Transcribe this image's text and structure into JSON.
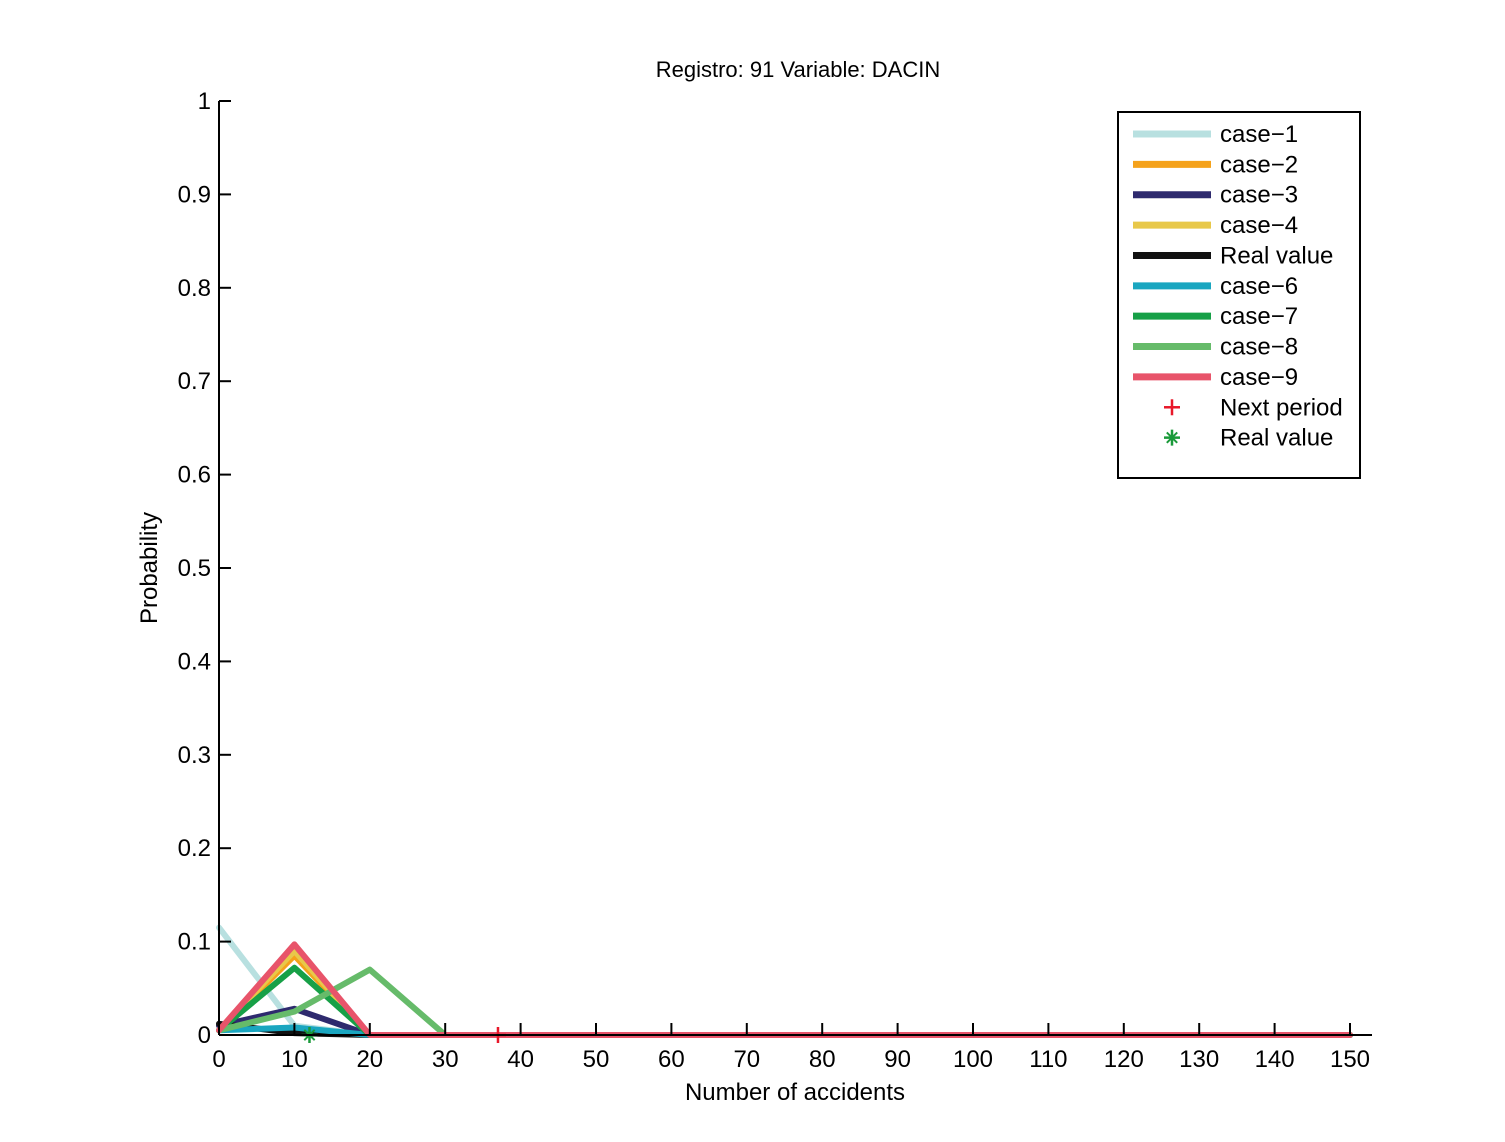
{
  "chart_data": {
    "type": "line",
    "title": "Registro: 91 Variable: DACIN",
    "xlabel": "Number of accidents",
    "ylabel": "Probability",
    "xlim": [
      0,
      150
    ],
    "ylim": [
      0,
      1
    ],
    "xticks": [
      0,
      10,
      20,
      30,
      40,
      50,
      60,
      70,
      80,
      90,
      100,
      110,
      120,
      130,
      140,
      150
    ],
    "yticks": [
      0,
      0.1,
      0.2,
      0.3,
      0.4,
      0.5,
      0.6,
      0.7,
      0.8,
      0.9,
      1
    ],
    "ytick_labels": [
      "0",
      "0.1",
      "0.2",
      "0.3",
      "0.4",
      "0.5",
      "0.6",
      "0.7",
      "0.8",
      "0.9",
      "1"
    ],
    "grid": false,
    "legend_position": "top-right",
    "x": [
      0,
      10,
      20,
      30,
      40,
      50,
      60,
      70,
      80,
      90,
      100,
      110,
      120,
      130,
      140,
      150
    ],
    "series": [
      {
        "name": "case−1",
        "color": "#b8e0e0",
        "values": [
          0.115,
          0.01,
          0,
          0,
          0,
          0,
          0,
          0,
          0,
          0,
          0,
          0,
          0,
          0,
          0,
          0
        ]
      },
      {
        "name": "case−2",
        "color": "#f5a21b",
        "values": [
          0.005,
          0.085,
          0,
          0,
          0,
          0,
          0,
          0,
          0,
          0,
          0,
          0,
          0,
          0,
          0,
          0
        ]
      },
      {
        "name": "case−3",
        "color": "#2e2a6e",
        "values": [
          0.01,
          0.028,
          0,
          0,
          0,
          0,
          0,
          0,
          0,
          0,
          0,
          0,
          0,
          0,
          0,
          0
        ]
      },
      {
        "name": "case−4",
        "color": "#e8c84a",
        "values": [
          0.005,
          0.09,
          0,
          0,
          0,
          0,
          0,
          0,
          0,
          0,
          0,
          0,
          0,
          0,
          0,
          0
        ]
      },
      {
        "name": "Real value",
        "color": "#111111",
        "values": [
          0.012,
          0.002,
          0,
          0,
          0,
          0,
          0,
          0,
          0,
          0,
          0,
          0,
          0,
          0,
          0,
          0
        ]
      },
      {
        "name": "case−6",
        "color": "#1aa6c0",
        "values": [
          0.005,
          0.008,
          0,
          0,
          0,
          0,
          0,
          0,
          0,
          0,
          0,
          0,
          0,
          0,
          0,
          0
        ]
      },
      {
        "name": "case−7",
        "color": "#17a047",
        "values": [
          0.005,
          0.072,
          0,
          0,
          0,
          0,
          0,
          0,
          0,
          0,
          0,
          0,
          0,
          0,
          0,
          0
        ]
      },
      {
        "name": "case−8",
        "color": "#66bb6a",
        "values": [
          0.005,
          0.025,
          0.07,
          0,
          0,
          0,
          0,
          0,
          0,
          0,
          0,
          0,
          0,
          0,
          0,
          0
        ]
      },
      {
        "name": "case−9",
        "color": "#e8546a",
        "values": [
          0.005,
          0.097,
          0,
          0,
          0,
          0,
          0,
          0,
          0,
          0,
          0,
          0,
          0,
          0,
          0,
          0
        ]
      }
    ],
    "markers": [
      {
        "name": "Next period",
        "symbol": "+",
        "color": "#e8182a",
        "x": 37,
        "y": 0
      },
      {
        "name": "Real value",
        "symbol": "*",
        "color": "#1a9a3a",
        "x": 12,
        "y": 0
      }
    ]
  }
}
